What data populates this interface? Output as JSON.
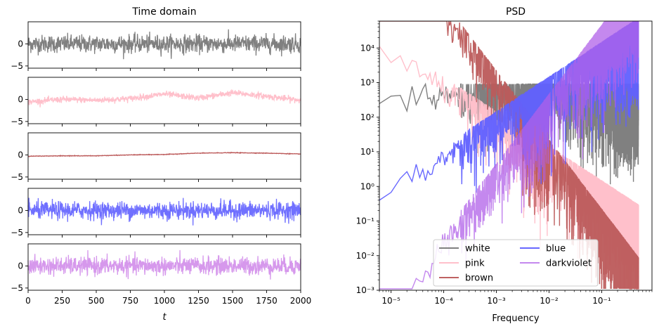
{
  "chart_data": [
    {
      "type": "line",
      "title": "Time domain",
      "xlabel": "t",
      "xlim": [
        0,
        2000
      ],
      "x_ticks": [
        "0",
        "250",
        "500",
        "750",
        "1000",
        "1250",
        "1500",
        "1750",
        "2000"
      ],
      "x_tick_values": [
        0,
        250,
        500,
        750,
        1000,
        1250,
        1500,
        1750,
        2000
      ],
      "panels": [
        {
          "series": "white",
          "color": "#808080",
          "ylim": [
            -5.5,
            5
          ],
          "y_ticks": [
            "0",
            "−5"
          ],
          "y_tick_values": [
            0,
            -5
          ],
          "std": 1.0,
          "trend": [
            0,
            0
          ]
        },
        {
          "series": "pink",
          "color": "#ffc0cb",
          "ylim": [
            -5.5,
            5
          ],
          "y_ticks": [
            "0",
            "−5"
          ],
          "y_tick_values": [
            0,
            -5
          ],
          "std": 0.35,
          "trend": [
            -0.6,
            0.0,
            -0.2,
            0.2,
            1.2,
            0.3,
            1.5,
            0.7,
            -0.2
          ]
        },
        {
          "series": "brown",
          "color": "#bc5a5a",
          "ylim": [
            -5.5,
            5
          ],
          "y_ticks": [
            "0",
            "−5"
          ],
          "y_tick_values": [
            0,
            -5
          ],
          "std": 0.03,
          "trend": [
            -0.3,
            -0.2,
            -0.2,
            0.0,
            0.1,
            0.4,
            0.5,
            0.4,
            0.2
          ]
        },
        {
          "series": "blue",
          "color": "#7070ff",
          "ylim": [
            -5.5,
            5
          ],
          "y_ticks": [
            "0",
            "−5"
          ],
          "y_tick_values": [
            0,
            -5
          ],
          "std": 1.0,
          "trend": [
            0,
            0
          ]
        },
        {
          "series": "darkviolet",
          "color": "#d698ec",
          "ylim": [
            -5.5,
            5
          ],
          "y_ticks": [
            "0",
            "−5"
          ],
          "y_tick_values": [
            0,
            -5
          ],
          "std": 1.0,
          "trend": [
            0,
            0
          ]
        }
      ]
    },
    {
      "type": "line",
      "title": "PSD",
      "xlabel": "Frequency",
      "x_scale": "log",
      "y_scale": "log",
      "xlim": [
        6e-06,
        0.9
      ],
      "ylim": [
        0.001,
        60000
      ],
      "x_ticks": [
        "10⁻⁵",
        "10⁻⁴",
        "10⁻³",
        "10⁻²",
        "10⁻¹"
      ],
      "x_tick_values": [
        1e-05,
        0.0001,
        0.001,
        0.01,
        0.1
      ],
      "y_ticks": [
        "10⁻³",
        "10⁻²",
        "10⁻¹",
        "10⁰",
        "10¹",
        "10²",
        "10³",
        "10⁴"
      ],
      "y_tick_values": [
        0.001,
        0.01,
        0.1,
        1,
        10,
        100,
        1000,
        10000
      ],
      "series": [
        {
          "name": "white",
          "color": "#808080",
          "alpha": 1.0,
          "slope": 0,
          "ref": 500
        },
        {
          "name": "pink",
          "color": "#ffc0cb",
          "alpha": 1.0,
          "slope": -1,
          "ref": 0.08
        },
        {
          "name": "brown",
          "color": "#bc5a5a",
          "alpha": 0.95,
          "slope": -2,
          "ref": 0.0012
        },
        {
          "name": "blue",
          "color": "#6060ff",
          "alpha": 0.95,
          "slope": 1,
          "ref": 80000
        },
        {
          "name": "darkviolet",
          "color": "#b060e8",
          "alpha": 0.75,
          "slope": 2,
          "ref": 2500000
        }
      ],
      "legend": {
        "placement": "lower center",
        "columns": 2,
        "entries": [
          "white",
          "pink",
          "brown",
          "blue",
          "darkviolet"
        ]
      }
    }
  ]
}
